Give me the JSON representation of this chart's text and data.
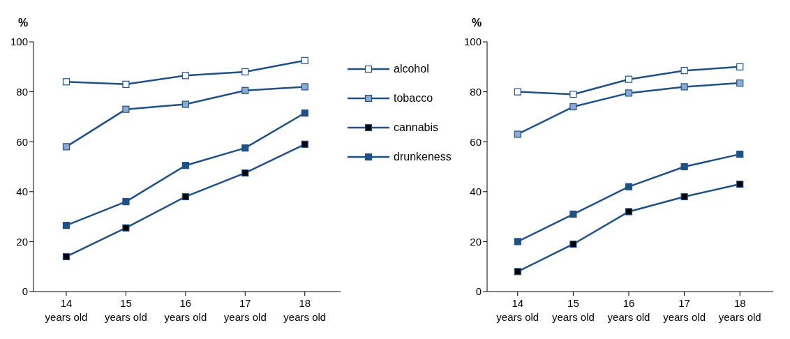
{
  "chart_data": [
    {
      "type": "line",
      "ylabel": "%",
      "categories": [
        "14 years old",
        "15 years old",
        "16 years old",
        "17 years old",
        "18 years old"
      ],
      "ylim": [
        0,
        100
      ],
      "yticks": [
        0,
        20,
        40,
        60,
        80,
        100
      ],
      "grid": false,
      "legend": "right",
      "marker": "square",
      "line_style": "solid",
      "series": [
        {
          "name": "alcohol",
          "color": "#1f5086",
          "colors": [
            "#ffffff",
            "#ffffff",
            "#ffffff",
            "#ffffff",
            "#ffffff"
          ],
          "values": [
            84,
            83,
            86.5,
            88,
            92.5
          ]
        },
        {
          "name": "tobacco",
          "color": "#1f5086",
          "colors": [
            "#8eaad0",
            "#8eaad0",
            "#8eaad0",
            "#8eaad0",
            "#8eaad0"
          ],
          "values": [
            58,
            73,
            75,
            80.5,
            82
          ]
        },
        {
          "name": "cannabis",
          "color": "#1f5086",
          "colors": [
            "#000000",
            "#000000",
            "#000000",
            "#000000",
            "#000000"
          ],
          "values": [
            14,
            25.5,
            38,
            47.5,
            59
          ]
        },
        {
          "name": "drunkeness",
          "color": "#1f5086",
          "colors": [
            "#1f5086",
            "#1f5086",
            "#1f5086",
            "#1f5086",
            "#1f5086"
          ],
          "values": [
            26.5,
            36,
            50.5,
            57.5,
            71.5
          ]
        }
      ]
    },
    {
      "type": "line",
      "ylabel": "%",
      "categories": [
        "14 years old",
        "15 years old",
        "16 years old",
        "17 years old",
        "18 years old"
      ],
      "ylim": [
        0,
        100
      ],
      "yticks": [
        0,
        20,
        40,
        60,
        80,
        100
      ],
      "grid": false,
      "legend": false,
      "marker": "square",
      "line_style": "solid",
      "series": [
        {
          "color": "#1f5086",
          "colors": [
            "#ffffff",
            "#ffffff",
            "#ffffff",
            "#ffffff",
            "#ffffff"
          ],
          "values": [
            80,
            79,
            85,
            88.5,
            90
          ]
        },
        {
          "color": "#1f5086",
          "colors": [
            "#8eaad0",
            "#8eaad0",
            "#8eaad0",
            "#8eaad0",
            "#8eaad0"
          ],
          "values": [
            63,
            74,
            79.5,
            82,
            83.5
          ]
        },
        {
          "color": "#1f5086",
          "colors": [
            "#000000",
            "#000000",
            "#000000",
            "#000000",
            "#000000"
          ],
          "values": [
            8,
            19,
            32,
            38,
            43
          ]
        },
        {
          "color": "#1f5086",
          "colors": [
            "#1f5086",
            "#1f5086",
            "#1f5086",
            "#1f5086",
            "#1f5086"
          ],
          "values": [
            20,
            31,
            42,
            50,
            55
          ]
        }
      ]
    }
  ]
}
